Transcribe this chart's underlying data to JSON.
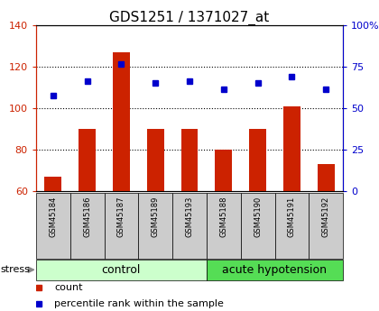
{
  "title": "GDS1251 / 1371027_at",
  "samples": [
    "GSM45184",
    "GSM45186",
    "GSM45187",
    "GSM45189",
    "GSM45193",
    "GSM45188",
    "GSM45190",
    "GSM45191",
    "GSM45192"
  ],
  "counts": [
    67,
    90,
    127,
    90,
    90,
    80,
    90,
    101,
    73
  ],
  "percentile_ranks_left_axis": [
    106,
    113,
    121,
    112,
    113,
    109,
    112,
    115,
    109
  ],
  "groups": [
    {
      "label": "control",
      "start": 0,
      "end": 5,
      "color": "#ccffcc"
    },
    {
      "label": "acute hypotension",
      "start": 5,
      "end": 9,
      "color": "#55dd55"
    }
  ],
  "ylim_left": [
    60,
    140
  ],
  "ylim_right": [
    0,
    100
  ],
  "yticks_left": [
    60,
    80,
    100,
    120,
    140
  ],
  "yticks_right": [
    0,
    25,
    50,
    75,
    100
  ],
  "ytick_labels_right": [
    "0",
    "25",
    "50",
    "75",
    "100%"
  ],
  "bar_color": "#cc2200",
  "marker_color": "#0000cc",
  "bar_bottom": 60,
  "grid_lines": [
    80,
    100,
    120
  ],
  "axis_label_color_left": "#cc2200",
  "axis_label_color_right": "#0000cc",
  "xlabel_area_color": "#cccccc",
  "legend_count_color": "#cc2200",
  "legend_percentile_color": "#0000cc",
  "title_fontsize": 11,
  "tick_fontsize": 8,
  "group_label_fontsize": 9,
  "sample_fontsize": 6,
  "legend_fontsize": 8
}
